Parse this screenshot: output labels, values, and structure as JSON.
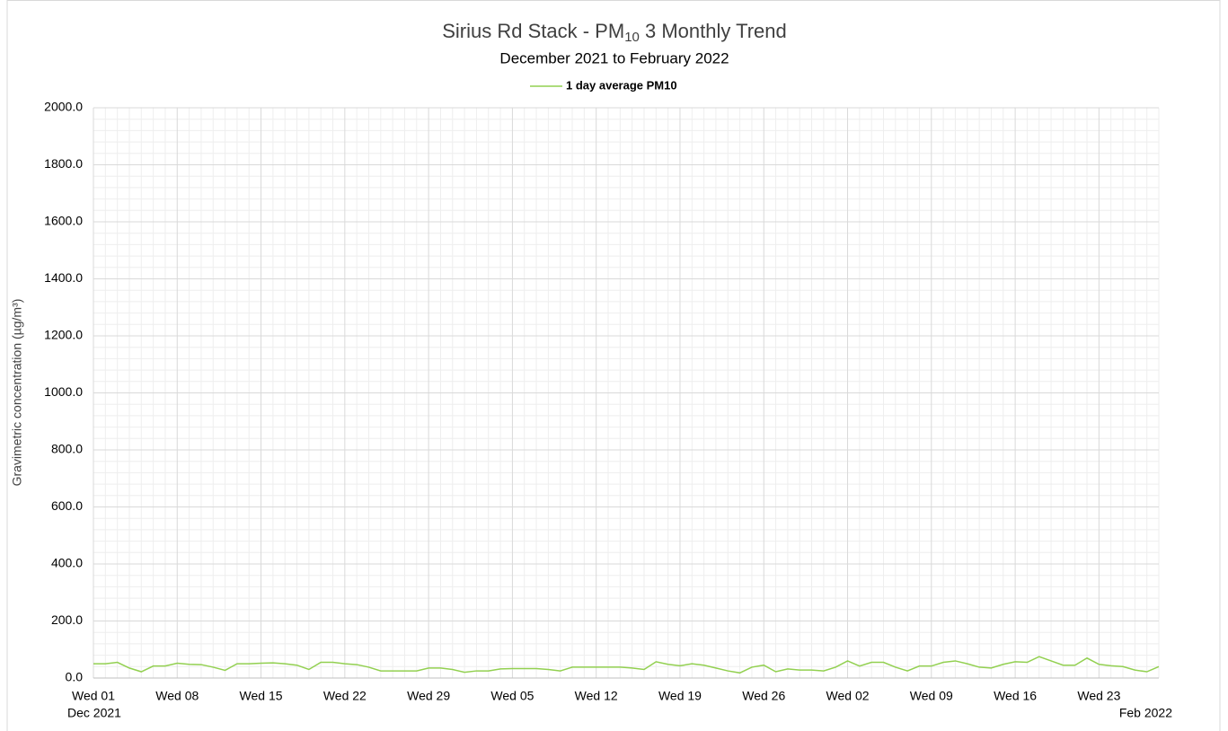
{
  "chart_data": {
    "type": "line",
    "title_parts": [
      "Sirius Rd Stack - PM",
      "10",
      " 3 Monthly Trend"
    ],
    "subtitle": "December 2021 to February 2022",
    "y_label": "Gravimetric concentration (µg/m³)",
    "period_start": "Dec 2021",
    "period_end": "Feb 2022",
    "categories": [
      "Wed 01",
      null,
      null,
      null,
      null,
      null,
      null,
      "Wed 08",
      null,
      null,
      null,
      null,
      null,
      null,
      "Wed 15",
      null,
      null,
      null,
      null,
      null,
      null,
      "Wed 22",
      null,
      null,
      null,
      null,
      null,
      null,
      "Wed 29",
      null,
      null,
      null,
      null,
      null,
      null,
      "Wed 05",
      null,
      null,
      null,
      null,
      null,
      null,
      "Wed 12",
      null,
      null,
      null,
      null,
      null,
      null,
      "Wed 19",
      null,
      null,
      null,
      null,
      null,
      null,
      "Wed 26",
      null,
      null,
      null,
      null,
      null,
      null,
      "Wed 02",
      null,
      null,
      null,
      null,
      null,
      null,
      "Wed 09",
      null,
      null,
      null,
      null,
      null,
      null,
      "Wed 16",
      null,
      null,
      null,
      null,
      null,
      null,
      "Wed 23",
      null,
      null,
      null,
      null,
      null
    ],
    "series": [
      {
        "name": "1 day average PM10",
        "color": "#92d050",
        "values": [
          50,
          50,
          55,
          35,
          22,
          42,
          42,
          52,
          48,
          47,
          38,
          27,
          50,
          50,
          52,
          53,
          50,
          45,
          30,
          55,
          55,
          50,
          47,
          38,
          25,
          25,
          25,
          25,
          35,
          35,
          30,
          20,
          25,
          25,
          32,
          33,
          33,
          33,
          30,
          25,
          38,
          38,
          38,
          38,
          38,
          35,
          30,
          57,
          48,
          43,
          50,
          45,
          35,
          25,
          18,
          38,
          45,
          22,
          32,
          28,
          28,
          25,
          38,
          60,
          42,
          55,
          55,
          38,
          25,
          42,
          42,
          55,
          60,
          50,
          38,
          35,
          48,
          57,
          55,
          75,
          60,
          45,
          45,
          70,
          48,
          43,
          40,
          28,
          22,
          40
        ]
      }
    ],
    "ylim": [
      0,
      2000
    ],
    "yticks": [
      {
        "value": 0,
        "label": "0.0"
      },
      {
        "value": 200,
        "label": "200.0"
      },
      {
        "value": 400,
        "label": "400.0"
      },
      {
        "value": 600,
        "label": "600.0"
      },
      {
        "value": 800,
        "label": "800.0"
      },
      {
        "value": 1000,
        "label": "1000.0"
      },
      {
        "value": 1200,
        "label": "1200.0"
      },
      {
        "value": 1400,
        "label": "1400.0"
      },
      {
        "value": 1600,
        "label": "1600.0"
      },
      {
        "value": 1800,
        "label": "1800.0"
      },
      {
        "value": 2000,
        "label": "2000.0"
      }
    ],
    "yminorticks": [
      40,
      80,
      120,
      160,
      240,
      280,
      320,
      360,
      440,
      480,
      520,
      560,
      640,
      680,
      720,
      760,
      840,
      880,
      920,
      960,
      1040,
      1080,
      1120,
      1160,
      1240,
      1280,
      1320,
      1360,
      1440,
      1480,
      1520,
      1560,
      1640,
      1680,
      1720,
      1760,
      1840,
      1880,
      1920,
      1960
    ],
    "grid": true,
    "legend": "top"
  }
}
